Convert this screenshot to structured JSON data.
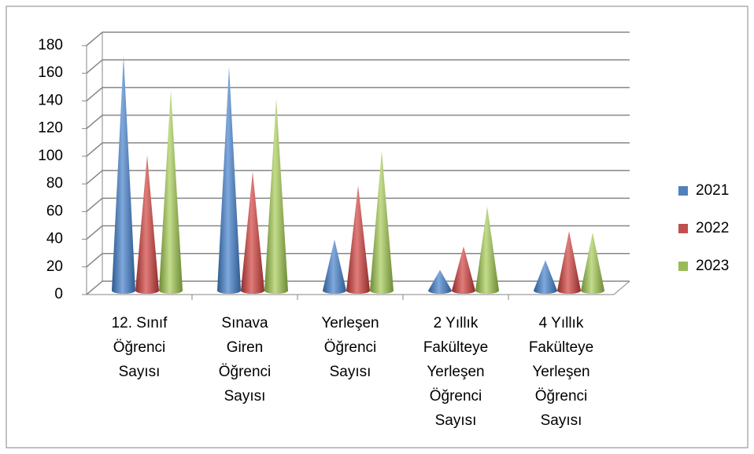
{
  "chart_data": {
    "type": "cone",
    "categories": [
      "12. Sınıf Öğrenci Sayısı",
      "Sınava Giren Öğrenci Sayısı",
      "Yerleşen Öğrenci Sayısı",
      "2 Yıllık Fakülteye Yerleşen Öğrenci Sayısı",
      "4 Yıllık Fakülteye Yerleşen Öğrenci Sayısı"
    ],
    "series": [
      {
        "name": "2021",
        "color": "#4f81bd",
        "values": [
          170,
          162,
          37,
          15,
          22
        ]
      },
      {
        "name": "2022",
        "color": "#c0504d",
        "values": [
          98,
          86,
          76,
          32,
          43
        ]
      },
      {
        "name": "2023",
        "color": "#9bbb59",
        "values": [
          145,
          139,
          101,
          61,
          42
        ]
      }
    ],
    "ylim": [
      0,
      180
    ],
    "yticks": [
      0,
      20,
      40,
      60,
      80,
      100,
      120,
      140,
      160,
      180
    ],
    "grid": true,
    "legend": "right"
  }
}
